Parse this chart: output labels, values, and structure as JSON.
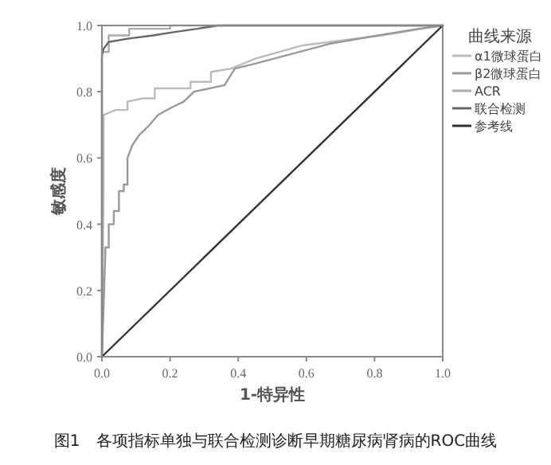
{
  "chart_data": {
    "type": "line",
    "xlabel": "1-特异性",
    "ylabel": "敏感度",
    "legend_title": "曲线来源",
    "legend": "right",
    "grid": false,
    "marker": "none",
    "xlim": [
      0,
      1
    ],
    "ylim": [
      0,
      1
    ],
    "xticks": [
      {
        "value": 0,
        "label": "0.0"
      },
      {
        "value": 0.2,
        "label": "0.2"
      },
      {
        "value": 0.4,
        "label": "0.4"
      },
      {
        "value": 0.6,
        "label": "0.6"
      },
      {
        "value": 0.8,
        "label": "0.8"
      },
      {
        "value": 1,
        "label": "1.0"
      }
    ],
    "yticks": [
      {
        "value": 0,
        "label": "0.0"
      },
      {
        "value": 0.2,
        "label": "0.2"
      },
      {
        "value": 0.4,
        "label": "0.4"
      },
      {
        "value": 0.6,
        "label": "0.6"
      },
      {
        "value": 0.8,
        "label": "0.8"
      },
      {
        "value": 1,
        "label": "1.0"
      }
    ],
    "series": [
      {
        "name": "α1微球蛋白",
        "color": "#bbbbbb",
        "x": [
          0,
          0.005,
          0.005,
          0.04,
          0.075,
          0.075,
          0.12,
          0.155,
          0.155,
          0.26,
          0.26,
          0.32,
          0.32,
          0.38,
          0.45,
          0.59,
          0.82,
          0.94,
          1
        ],
        "values": [
          0,
          0.53,
          0.73,
          0.745,
          0.745,
          0.77,
          0.78,
          0.78,
          0.81,
          0.81,
          0.83,
          0.83,
          0.86,
          0.87,
          0.9,
          0.94,
          0.97,
          0.99,
          1
        ]
      },
      {
        "name": "β2微球蛋白",
        "color": "#999999",
        "x": [
          0,
          0.01,
          0.01,
          0.02,
          0.02,
          0.035,
          0.035,
          0.05,
          0.05,
          0.064,
          0.064,
          0.075,
          0.075,
          0.09,
          0.11,
          0.14,
          0.165,
          0.2,
          0.24,
          0.27,
          0.36,
          0.39,
          0.45,
          0.67,
          0.81,
          0.93,
          1
        ],
        "values": [
          0,
          0.31,
          0.33,
          0.33,
          0.4,
          0.4,
          0.44,
          0.44,
          0.5,
          0.5,
          0.52,
          0.52,
          0.6,
          0.64,
          0.67,
          0.7,
          0.73,
          0.75,
          0.77,
          0.8,
          0.82,
          0.87,
          0.885,
          0.945,
          0.97,
          0.99,
          1
        ]
      },
      {
        "name": "ACR",
        "color": "#aaaaaa",
        "x": [
          0,
          0,
          0.02,
          0.02,
          0.08,
          0.08,
          0.2,
          0.2,
          1
        ],
        "values": [
          0,
          0.92,
          0.92,
          0.97,
          0.97,
          0.99,
          0.99,
          1,
          1
        ]
      },
      {
        "name": "联合检测",
        "color": "#666666",
        "x": [
          0,
          0,
          0.005,
          0.02,
          0.075,
          0.15,
          0.21,
          0.28,
          0.34,
          1
        ],
        "values": [
          0,
          0.91,
          0.93,
          0.95,
          0.96,
          0.97,
          0.98,
          0.99,
          1,
          1
        ]
      },
      {
        "name": "参考线",
        "color": "#333333",
        "x": [
          0,
          1
        ],
        "values": [
          0,
          1
        ]
      }
    ],
    "annotations": [
      "图1　各项指标单独与联合检测诊断早期糖尿病肾病的ROC曲线"
    ]
  }
}
